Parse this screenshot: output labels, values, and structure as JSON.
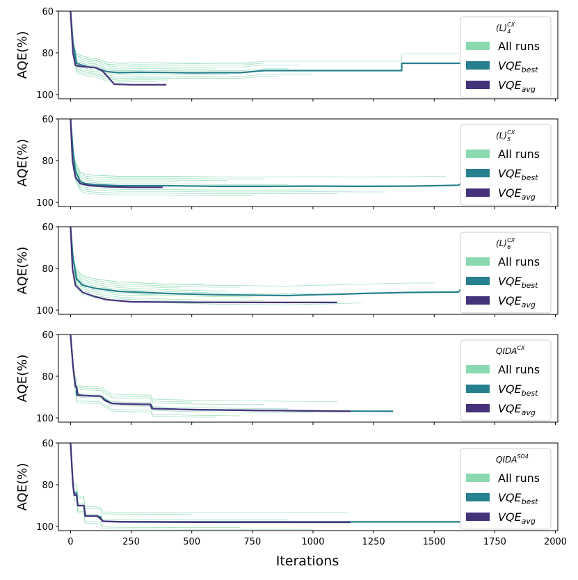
{
  "chart_data": {
    "type": "line",
    "x_label": "Iterations",
    "x_ticks": [
      0,
      250,
      500,
      750,
      1000,
      1250,
      1500,
      1750,
      2000
    ],
    "xlim": [
      -50,
      2010
    ],
    "y_label": "AQE(%)",
    "y_ticks": [
      60,
      80,
      100
    ],
    "ylim_inverted": [
      60,
      102
    ],
    "legend_labels": [
      "All runs",
      "VQE_best",
      "VQE_avg"
    ],
    "legend_placement": "top-right",
    "colors": {
      "all_runs": "#8ad9b0",
      "vqe_best": "#26808e",
      "vqe_avg": "#44337a"
    },
    "panels": [
      {
        "legend_title": "(L)_4^CX",
        "best": [
          [
            0,
            60
          ],
          [
            10,
            75
          ],
          [
            25,
            85
          ],
          [
            50,
            86
          ],
          [
            80,
            87
          ],
          [
            100,
            87
          ],
          [
            150,
            89
          ],
          [
            200,
            89.5
          ],
          [
            280,
            89.3
          ],
          [
            400,
            89.4
          ],
          [
            500,
            89.6
          ],
          [
            600,
            89.5
          ],
          [
            700,
            89.5
          ],
          [
            800,
            88.5
          ],
          [
            1000,
            88.5
          ],
          [
            1366,
            88.5
          ],
          [
            1366,
            85
          ],
          [
            1610,
            85
          ]
        ],
        "avg": [
          [
            0,
            60
          ],
          [
            10,
            80
          ],
          [
            20,
            86
          ],
          [
            40,
            86.5
          ],
          [
            100,
            87
          ],
          [
            130,
            88.5
          ],
          [
            150,
            91
          ],
          [
            180,
            95
          ],
          [
            250,
            95.3
          ],
          [
            395,
            95.3
          ]
        ],
        "runs_end": [
          1600,
          900,
          700,
          800,
          500,
          400,
          950,
          650,
          350,
          600,
          1000,
          750,
          300,
          850,
          450
        ]
      },
      {
        "legend_title": "(L)_5^CX",
        "best": [
          [
            0,
            60
          ],
          [
            10,
            75
          ],
          [
            20,
            85
          ],
          [
            40,
            90
          ],
          [
            60,
            91
          ],
          [
            100,
            91.5
          ],
          [
            200,
            92
          ],
          [
            400,
            92
          ],
          [
            600,
            92.3
          ],
          [
            800,
            92.3
          ],
          [
            1000,
            92.2
          ],
          [
            1200,
            92.3
          ],
          [
            1400,
            92.2
          ],
          [
            1500,
            92
          ],
          [
            1600,
            91.8
          ],
          [
            1610,
            91
          ]
        ],
        "avg": [
          [
            0,
            60
          ],
          [
            8,
            80
          ],
          [
            20,
            88
          ],
          [
            40,
            91
          ],
          [
            80,
            92
          ],
          [
            150,
            92.5
          ],
          [
            250,
            92.8
          ],
          [
            380,
            92.8
          ]
        ],
        "runs_end": [
          1550,
          900,
          1300,
          800,
          500,
          1100,
          650,
          350,
          750,
          450,
          1000,
          600
        ]
      },
      {
        "legend_title": "(L)_6^CX",
        "best": [
          [
            0,
            60
          ],
          [
            10,
            75
          ],
          [
            25,
            85
          ],
          [
            50,
            88
          ],
          [
            100,
            89.5
          ],
          [
            200,
            91
          ],
          [
            400,
            92
          ],
          [
            600,
            92.6
          ],
          [
            750,
            92.8
          ],
          [
            900,
            93
          ],
          [
            1000,
            92.6
          ],
          [
            1100,
            92.4
          ],
          [
            1200,
            92
          ],
          [
            1400,
            91.5
          ],
          [
            1600,
            91.3
          ],
          [
            1610,
            90
          ]
        ],
        "avg": [
          [
            0,
            60
          ],
          [
            8,
            80
          ],
          [
            20,
            88
          ],
          [
            50,
            91.5
          ],
          [
            100,
            93.5
          ],
          [
            150,
            95
          ],
          [
            250,
            96
          ],
          [
            500,
            96.2
          ],
          [
            800,
            96.3
          ],
          [
            1100,
            96.3
          ]
        ],
        "runs_end": [
          1500,
          1000,
          800,
          700,
          600,
          900,
          450,
          750,
          1200,
          650,
          350,
          550
        ]
      },
      {
        "legend_title": "QIDA^CX",
        "best": [
          [
            0,
            60
          ],
          [
            10,
            75
          ],
          [
            20,
            85
          ],
          [
            25,
            85
          ],
          [
            25,
            89
          ],
          [
            50,
            89.2
          ],
          [
            100,
            89.5
          ],
          [
            120,
            89.5
          ],
          [
            130,
            90
          ],
          [
            140,
            91
          ],
          [
            170,
            93
          ],
          [
            220,
            93.3
          ],
          [
            300,
            93.5
          ],
          [
            330,
            93.5
          ],
          [
            340,
            95.5
          ],
          [
            500,
            96
          ],
          [
            700,
            96.3
          ],
          [
            900,
            96.5
          ],
          [
            1100,
            96.7
          ],
          [
            1330,
            96.8
          ]
        ],
        "avg": [
          [
            0,
            60
          ],
          [
            10,
            75
          ],
          [
            20,
            85
          ],
          [
            25,
            85
          ],
          [
            30,
            89
          ],
          [
            50,
            89.2
          ],
          [
            100,
            89.5
          ],
          [
            120,
            89.5
          ],
          [
            130,
            90
          ],
          [
            140,
            91.5
          ],
          [
            170,
            93
          ],
          [
            220,
            93.3
          ],
          [
            300,
            93.5
          ],
          [
            330,
            93.5
          ],
          [
            335,
            95.5
          ],
          [
            500,
            96
          ],
          [
            700,
            96.3
          ],
          [
            900,
            96.5
          ],
          [
            1100,
            96.8
          ],
          [
            1155,
            96.8
          ]
        ],
        "runs_end": [
          1100,
          900,
          700,
          500,
          400,
          600,
          800,
          1000
        ]
      },
      {
        "legend_title": "QIDA^SO4",
        "best": [
          [
            0,
            60
          ],
          [
            10,
            80
          ],
          [
            15,
            84
          ],
          [
            25,
            84
          ],
          [
            30,
            90
          ],
          [
            55,
            90
          ],
          [
            60,
            95
          ],
          [
            110,
            95
          ],
          [
            125,
            95.5
          ],
          [
            130,
            97.5
          ],
          [
            200,
            97.7
          ],
          [
            500,
            97.8
          ],
          [
            1000,
            97.8
          ],
          [
            1500,
            97.8
          ],
          [
            1610,
            97.8
          ]
        ],
        "avg": [
          [
            0,
            60
          ],
          [
            10,
            80
          ],
          [
            15,
            85
          ],
          [
            25,
            85
          ],
          [
            30,
            90
          ],
          [
            55,
            90
          ],
          [
            62,
            95
          ],
          [
            110,
            95
          ],
          [
            135,
            97.5
          ],
          [
            200,
            97.8
          ],
          [
            600,
            98
          ],
          [
            1000,
            98
          ],
          [
            1155,
            98
          ]
        ],
        "runs_end": [
          1150,
          900,
          700,
          500,
          300,
          1000
        ]
      }
    ]
  }
}
